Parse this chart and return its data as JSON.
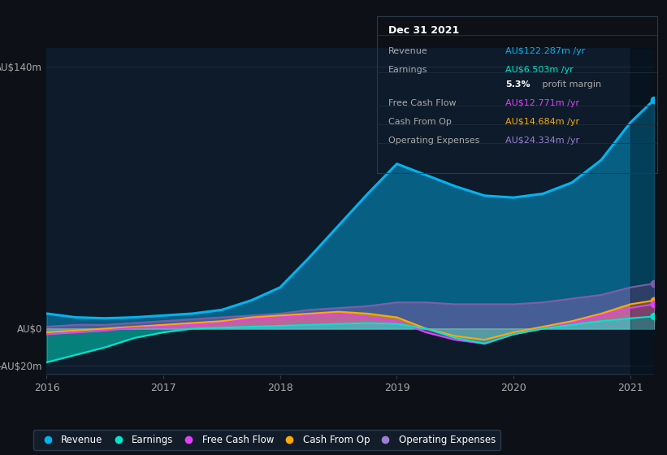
{
  "background_color": "#0d1117",
  "plot_bg_color": "#0d1b2a",
  "years": [
    2016.0,
    2016.25,
    2016.5,
    2016.75,
    2017.0,
    2017.25,
    2017.5,
    2017.75,
    2018.0,
    2018.25,
    2018.5,
    2018.75,
    2019.0,
    2019.25,
    2019.5,
    2019.75,
    2020.0,
    2020.25,
    2020.5,
    2020.75,
    2021.0,
    2021.2
  ],
  "revenue": [
    8,
    6,
    5.5,
    6,
    7,
    8,
    10,
    15,
    22,
    38,
    55,
    72,
    88,
    82,
    76,
    71,
    70,
    72,
    78,
    90,
    110,
    122
  ],
  "earnings": [
    -18,
    -14,
    -10,
    -5,
    -2,
    0,
    0.5,
    1,
    1.5,
    2,
    2.5,
    3,
    2.5,
    0,
    -5,
    -8,
    -3,
    0,
    2,
    4,
    5.5,
    6.5
  ],
  "free_cash_flow": [
    -3,
    -2,
    -1,
    0.5,
    1,
    2,
    3,
    5,
    6,
    7,
    8,
    6,
    4,
    -2,
    -6,
    -8,
    -3,
    0,
    3,
    7,
    11,
    13
  ],
  "cash_from_op": [
    -2,
    -1,
    0,
    1,
    2,
    3,
    4,
    6,
    7,
    8,
    9,
    8,
    6,
    0,
    -4,
    -6,
    -2,
    1,
    4,
    8,
    13,
    15
  ],
  "operating_expenses": [
    1,
    2,
    2,
    3,
    4,
    5,
    6,
    7,
    8,
    10,
    11,
    12,
    14,
    14,
    13,
    13,
    13,
    14,
    16,
    18,
    22,
    24
  ],
  "revenue_color": "#00b4f0",
  "earnings_color": "#00e5cc",
  "free_cash_flow_color": "#e040fb",
  "cash_from_op_color": "#ffaa00",
  "operating_expenses_color": "#7b5ea7",
  "ylim": [
    -25,
    150
  ],
  "ytick_positions": [
    -20,
    0,
    140
  ],
  "ytick_labels": [
    "-AU$20m",
    "AU$0",
    "AU$140m"
  ],
  "xticks": [
    2016,
    2017,
    2018,
    2019,
    2020,
    2021
  ],
  "grid_color": "#1e2d3d",
  "zero_line_color": "#3a5068",
  "highlight_start": 2021.0,
  "info_box": {
    "title": "Dec 31 2021",
    "rows": [
      {
        "label": "Revenue",
        "value": "AU$122.287m /yr",
        "value_color": "#00b4f0"
      },
      {
        "label": "Earnings",
        "value": "AU$6.503m /yr",
        "value_color": "#00e5cc"
      },
      {
        "label": "",
        "value": "5.3%",
        "value2": " profit margin",
        "value_color": "#ffffff"
      },
      {
        "label": "Free Cash Flow",
        "value": "AU$12.771m /yr",
        "value_color": "#e040fb"
      },
      {
        "label": "Cash From Op",
        "value": "AU$14.684m /yr",
        "value_color": "#ffaa00"
      },
      {
        "label": "Operating Expenses",
        "value": "AU$24.334m /yr",
        "value_color": "#9b7fd4"
      }
    ]
  },
  "legend_items": [
    {
      "label": "Revenue",
      "color": "#00b4f0"
    },
    {
      "label": "Earnings",
      "color": "#00e5cc"
    },
    {
      "label": "Free Cash Flow",
      "color": "#e040fb"
    },
    {
      "label": "Cash From Op",
      "color": "#ffaa00"
    },
    {
      "label": "Operating Expenses",
      "color": "#9b7fd4"
    }
  ]
}
